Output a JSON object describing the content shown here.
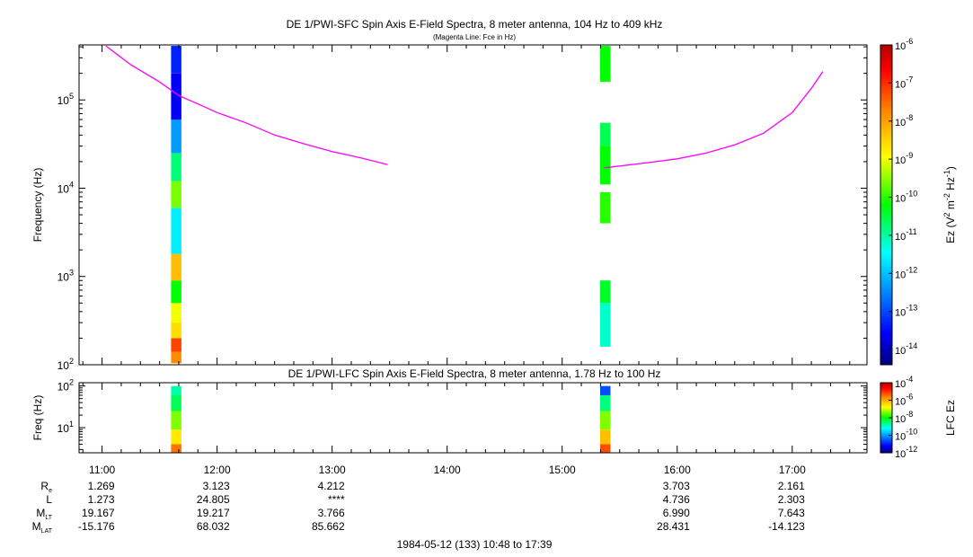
{
  "chart_data": [
    {
      "type": "heatmap",
      "title": "DE 1/PWI-SFC  Spin Axis E-Field Spectra, 8 meter antenna, 104 Hz to 409 kHz",
      "subtitle": "(Magenta Line: Fce in Hz)",
      "ylabel": "Frequency (Hz)",
      "yscale": "log",
      "ylim": [
        100,
        420000
      ],
      "xlim": [
        "10:48",
        "17:39"
      ],
      "yticks": [
        {
          "value": 100,
          "base": "10",
          "exp": "2"
        },
        {
          "value": 1000,
          "base": "10",
          "exp": "3"
        },
        {
          "value": 10000,
          "base": "10",
          "exp": "4"
        },
        {
          "value": 100000,
          "base": "10",
          "exp": "5"
        }
      ],
      "colorbar": {
        "label_parts": [
          "Ez (V",
          "2",
          " m",
          "-2",
          " Hz",
          "-1",
          ")"
        ],
        "scale": "log",
        "range": [
          -14.4,
          -6
        ],
        "ticks": [
          {
            "exp": "-6",
            "value": -6
          },
          {
            "exp": "-7",
            "value": -7
          },
          {
            "exp": "-8",
            "value": -8
          },
          {
            "exp": "-9",
            "value": -9
          },
          {
            "exp": "-10",
            "value": -10
          },
          {
            "exp": "-11",
            "value": -11
          },
          {
            "exp": "-12",
            "value": -12
          },
          {
            "exp": "-13",
            "value": -13
          },
          {
            "exp": "-14",
            "value": -14
          }
        ]
      },
      "columns": [
        {
          "t0": 11.6,
          "t1": 11.69,
          "segments": [
            {
              "f0": 104,
              "f1": 140,
              "v": -7.8
            },
            {
              "f0": 140,
              "f1": 200,
              "v": -7.2
            },
            {
              "f0": 200,
              "f1": 300,
              "v": -8.6
            },
            {
              "f0": 300,
              "f1": 500,
              "v": -9.0
            },
            {
              "f0": 500,
              "f1": 900,
              "v": -10.2
            },
            {
              "f0": 900,
              "f1": 1800,
              "v": -8.3
            },
            {
              "f0": 1800,
              "f1": 6000,
              "v": -11.6
            },
            {
              "f0": 6000,
              "f1": 12000,
              "v": -9.6
            },
            {
              "f0": 12000,
              "f1": 25000,
              "v": -10.8
            },
            {
              "f0": 25000,
              "f1": 60000,
              "v": -12.3
            },
            {
              "f0": 60000,
              "f1": 200000,
              "v": -13.6
            },
            {
              "f0": 200000,
              "f1": 409000,
              "v": -13.3
            }
          ]
        },
        {
          "t0": 15.33,
          "t1": 15.42,
          "segments": [
            {
              "f0": 160,
              "f1": 500,
              "v": -11.2
            },
            {
              "f0": 500,
              "f1": 900,
              "v": -10.4
            },
            {
              "f0": 4000,
              "f1": 9000,
              "v": -10.0
            },
            {
              "f0": 11000,
              "f1": 30000,
              "v": -10.2
            },
            {
              "f0": 30000,
              "f1": 55000,
              "v": -10.6
            },
            {
              "f0": 160000,
              "f1": 409000,
              "v": -10.2
            }
          ]
        }
      ],
      "lines": [
        {
          "color": "#ff00ff",
          "label": "Fce",
          "segments": [
            [
              [
                "11:02",
                409000
              ],
              [
                "11:15",
                250000
              ],
              [
                "11:30",
                160000
              ],
              [
                "11:40",
                112000
              ],
              [
                "11:50",
                90000
              ],
              [
                "12:00",
                72000
              ],
              [
                "12:15",
                55000
              ],
              [
                "12:30",
                40000
              ],
              [
                "12:45",
                32000
              ],
              [
                "13:00",
                26000
              ],
              [
                "13:15",
                22000
              ],
              [
                "13:29",
                18500
              ]
            ],
            [
              [
                "15:22",
                17000
              ],
              [
                "15:45",
                19500
              ],
              [
                "16:00",
                21500
              ],
              [
                "16:15",
                25000
              ],
              [
                "16:30",
                31000
              ],
              [
                "16:45",
                42000
              ],
              [
                "17:00",
                72000
              ],
              [
                "17:10",
                135000
              ],
              [
                "17:16",
                210000
              ]
            ]
          ]
        }
      ]
    },
    {
      "type": "heatmap",
      "title": "DE 1/PWI-LFC  Spin Axis E-Field Spectra, 8 meter antenna, 1.78 Hz to 100 Hz",
      "ylabel": "Freq (Hz)",
      "yscale": "log",
      "ylim": [
        2.5,
        120
      ],
      "yticks": [
        {
          "value": 10,
          "base": "10",
          "exp": "1"
        },
        {
          "value": 100,
          "base": "10",
          "exp": "2"
        }
      ],
      "colorbar": {
        "label": "LFC Ez",
        "scale": "log",
        "range": [
          -12,
          -4
        ],
        "ticks": [
          {
            "exp": "-4",
            "value": -4
          },
          {
            "exp": "-6",
            "value": -6
          },
          {
            "exp": "-8",
            "value": -8
          },
          {
            "exp": "-10",
            "value": -10
          },
          {
            "exp": "-12",
            "value": -12
          }
        ]
      },
      "columns": [
        {
          "t0": 11.6,
          "t1": 11.69,
          "segments": [
            {
              "f0": 1.78,
              "f1": 4,
              "v": -5.5
            },
            {
              "f0": 4,
              "f1": 9,
              "v": -6.6
            },
            {
              "f0": 9,
              "f1": 25,
              "v": -7.4
            },
            {
              "f0": 25,
              "f1": 60,
              "v": -8.4
            },
            {
              "f0": 60,
              "f1": 100,
              "v": -8.8
            }
          ]
        },
        {
          "t0": 15.33,
          "t1": 15.42,
          "segments": [
            {
              "f0": 1.78,
              "f1": 4,
              "v": -5.2
            },
            {
              "f0": 4,
              "f1": 9,
              "v": -6.2
            },
            {
              "f0": 9,
              "f1": 25,
              "v": -7.4
            },
            {
              "f0": 25,
              "f1": 60,
              "v": -8.6
            },
            {
              "f0": 60,
              "f1": 100,
              "v": -10.6
            }
          ]
        }
      ]
    }
  ],
  "time_axis": {
    "ticks": [
      "11:00",
      "12:00",
      "13:00",
      "14:00",
      "15:00",
      "16:00",
      "17:00"
    ],
    "start": "10:48",
    "end": "17:39"
  },
  "ephemeris": {
    "rows": [
      {
        "label": "R",
        "sub": "e",
        "values": [
          "1.269",
          "3.123",
          "4.212",
          "",
          "",
          "3.703",
          "2.161"
        ]
      },
      {
        "label": "L",
        "sub": "",
        "values": [
          "1.273",
          "24.805",
          "****",
          "",
          "",
          "4.736",
          "2.303"
        ]
      },
      {
        "label": "M",
        "sub": "LT",
        "values": [
          "19.167",
          "19.217",
          "3.766",
          "",
          "",
          "6.990",
          "7.643"
        ]
      },
      {
        "label": "M",
        "sub": "LAT",
        "values": [
          "-15.176",
          "68.032",
          "85.662",
          "",
          "",
          "28.431",
          "-14.123"
        ]
      }
    ]
  },
  "footer": "1984-05-12 (133) 10:48 to 17:39"
}
